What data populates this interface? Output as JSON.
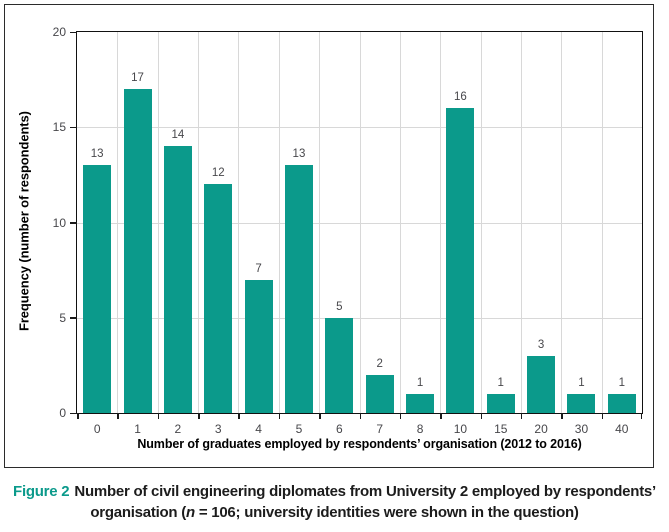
{
  "colors": {
    "bar": "#0b9a8b",
    "accent": "#0b9a8b",
    "grid": "#d8d8d8",
    "axis": "#1a1a1a",
    "tick_label": "#47474b"
  },
  "chart_data": {
    "type": "bar",
    "title": "",
    "categories": [
      "0",
      "1",
      "2",
      "3",
      "4",
      "5",
      "6",
      "7",
      "8",
      "10",
      "15",
      "20",
      "30",
      "40"
    ],
    "values": [
      13,
      17,
      14,
      12,
      7,
      13,
      5,
      2,
      1,
      16,
      1,
      3,
      1,
      1
    ],
    "xlabel": "Number of graduates employed by respondents’ organisation (2012 to 2016)",
    "ylabel": "Frequency (number of respondents)",
    "ylim": [
      0,
      20
    ],
    "yticks": [
      0,
      5,
      10,
      15,
      20
    ],
    "grid": true,
    "legend": "none",
    "bar_labels_shown": true
  },
  "caption": {
    "label": "Figure 2",
    "line1": "Number of civil engineering diplomates from University 2 employed by respondents’",
    "line2_pre": "organisation (",
    "line2_italic": "n",
    "line2_post": " = 106; university identities were shown in the question)"
  }
}
